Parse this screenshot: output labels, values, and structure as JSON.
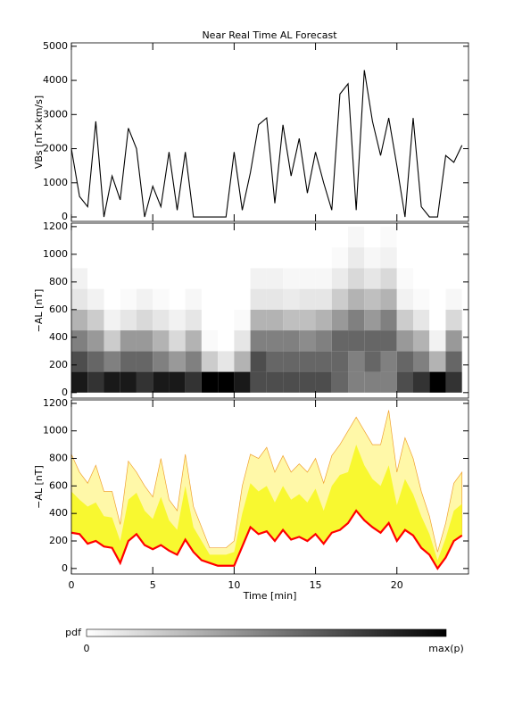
{
  "chart_data": [
    {
      "type": "line",
      "title": "Near Real Time AL Forecast",
      "ylabel": "VBs [nT×km/s]",
      "x": [
        0,
        0.5,
        1,
        1.5,
        2,
        2.5,
        3,
        3.5,
        4,
        4.5,
        5,
        5.5,
        6,
        6.5,
        7,
        7.5,
        8,
        8.5,
        9,
        9.5,
        10,
        10.5,
        11,
        11.5,
        12,
        12.5,
        13,
        13.5,
        14,
        14.5,
        15,
        15.5,
        16,
        16.5,
        17,
        17.5,
        18,
        18.5,
        19,
        19.5,
        20,
        20.5,
        21,
        21.5,
        22,
        22.5,
        23,
        23.5,
        24
      ],
      "series": [
        {
          "color": "#000000",
          "values": [
            2000,
            600,
            300,
            2800,
            0,
            1200,
            500,
            2600,
            2000,
            0,
            900,
            300,
            1900,
            200,
            1900,
            0,
            0,
            0,
            0,
            0,
            1900,
            200,
            1300,
            2700,
            2900,
            400,
            2700,
            1200,
            2300,
            700,
            1900,
            1000,
            200,
            3600,
            3900,
            200,
            4300,
            2800,
            1800,
            2900,
            1500,
            0,
            2900,
            300,
            0,
            0,
            1800,
            1600,
            2100
          ]
        }
      ],
      "xlim": [
        0,
        24.4
      ],
      "xticks": [
        0,
        5,
        10,
        15,
        20
      ],
      "ylim": [
        -130,
        5100
      ],
      "yticks": [
        0,
        1000,
        2000,
        3000,
        4000,
        5000
      ]
    },
    {
      "type": "heatmap",
      "ylabel": "−AL [nT]",
      "x": [
        0,
        1,
        2,
        3,
        4,
        5,
        6,
        7,
        8,
        9,
        10,
        11,
        12,
        13,
        14,
        15,
        16,
        17,
        18,
        19,
        20,
        21,
        22,
        23
      ],
      "y_bins": [
        0,
        150,
        300,
        450,
        600,
        750,
        900,
        1050,
        1200
      ],
      "z": [
        [
          0.9,
          0.7,
          0.5,
          0.3,
          0.1,
          0.05,
          0,
          0
        ],
        [
          0.8,
          0.6,
          0.4,
          0.2,
          0.05,
          0,
          0,
          0
        ],
        [
          0.9,
          0.5,
          0.2,
          0.05,
          0,
          0,
          0,
          0
        ],
        [
          0.9,
          0.6,
          0.4,
          0.1,
          0.02,
          0,
          0,
          0
        ],
        [
          0.8,
          0.6,
          0.4,
          0.15,
          0.05,
          0,
          0,
          0
        ],
        [
          0.9,
          0.5,
          0.3,
          0.1,
          0.02,
          0,
          0,
          0
        ],
        [
          0.9,
          0.4,
          0.15,
          0.05,
          0,
          0,
          0,
          0
        ],
        [
          0.8,
          0.5,
          0.3,
          0.1,
          0.03,
          0,
          0,
          0
        ],
        [
          1,
          0.2,
          0.02,
          0,
          0,
          0,
          0,
          0
        ],
        [
          1,
          0.1,
          0,
          0,
          0,
          0,
          0,
          0
        ],
        [
          0.9,
          0.3,
          0.1,
          0.02,
          0,
          0,
          0,
          0
        ],
        [
          0.7,
          0.7,
          0.5,
          0.3,
          0.1,
          0.05,
          0,
          0
        ],
        [
          0.7,
          0.6,
          0.5,
          0.3,
          0.1,
          0.05,
          0,
          0
        ],
        [
          0.7,
          0.6,
          0.5,
          0.25,
          0.08,
          0.03,
          0,
          0
        ],
        [
          0.7,
          0.6,
          0.45,
          0.25,
          0.1,
          0.03,
          0,
          0
        ],
        [
          0.7,
          0.6,
          0.5,
          0.3,
          0.1,
          0.03,
          0,
          0
        ],
        [
          0.6,
          0.6,
          0.6,
          0.4,
          0.2,
          0.08,
          0.02,
          0
        ],
        [
          0.5,
          0.5,
          0.6,
          0.5,
          0.3,
          0.15,
          0.08,
          0.03
        ],
        [
          0.5,
          0.6,
          0.6,
          0.4,
          0.25,
          0.1,
          0.03,
          0
        ],
        [
          0.5,
          0.5,
          0.6,
          0.5,
          0.3,
          0.15,
          0.05,
          0.02
        ],
        [
          0.7,
          0.6,
          0.4,
          0.2,
          0.05,
          0.02,
          0,
          0
        ],
        [
          0.8,
          0.5,
          0.3,
          0.1,
          0.02,
          0,
          0,
          0
        ],
        [
          1,
          0.3,
          0.05,
          0,
          0,
          0,
          0,
          0
        ],
        [
          0.8,
          0.6,
          0.4,
          0.15,
          0.03,
          0,
          0,
          0
        ]
      ],
      "xlim": [
        0,
        24.4
      ],
      "xticks": [
        0,
        5,
        10,
        15,
        20
      ],
      "ylim": [
        -40,
        1225
      ],
      "yticks": [
        0,
        200,
        400,
        600,
        800,
        1000,
        1200
      ]
    },
    {
      "type": "band",
      "ylabel": "−AL [nT]",
      "xlabel": "Time [min]",
      "x": [
        0,
        0.5,
        1,
        1.5,
        2,
        2.5,
        3,
        3.5,
        4,
        4.5,
        5,
        5.5,
        6,
        6.5,
        7,
        7.5,
        8,
        8.5,
        9,
        9.5,
        10,
        10.5,
        11,
        11.5,
        12,
        12.5,
        13,
        13.5,
        14,
        14.5,
        15,
        15.5,
        16,
        16.5,
        17,
        17.5,
        18,
        18.5,
        19,
        19.5,
        20,
        20.5,
        21,
        21.5,
        22,
        22.5,
        23,
        23.5,
        24
      ],
      "series": [
        {
          "color": "#fff8a8",
          "values": [
            830,
            700,
            620,
            750,
            560,
            560,
            320,
            780,
            700,
            600,
            520,
            800,
            500,
            420,
            830,
            450,
            300,
            150,
            150,
            150,
            200,
            600,
            830,
            800,
            880,
            700,
            820,
            700,
            760,
            700,
            800,
            620,
            820,
            900,
            1000,
            1100,
            1000,
            900,
            900,
            1150,
            700,
            950,
            800,
            560,
            380,
            120,
            330,
            620,
            700
          ]
        },
        {
          "color": "#f8f830",
          "values": [
            560,
            500,
            450,
            480,
            380,
            370,
            200,
            500,
            550,
            420,
            360,
            520,
            350,
            280,
            600,
            300,
            200,
            100,
            100,
            100,
            120,
            400,
            620,
            560,
            600,
            480,
            600,
            500,
            540,
            480,
            580,
            420,
            600,
            680,
            700,
            900,
            750,
            650,
            600,
            750,
            460,
            650,
            540,
            380,
            250,
            60,
            220,
            420,
            470
          ]
        },
        {
          "color": "#ff0000",
          "values": [
            260,
            250,
            180,
            200,
            160,
            150,
            40,
            200,
            250,
            170,
            140,
            170,
            130,
            100,
            210,
            120,
            60,
            40,
            20,
            20,
            20,
            160,
            300,
            250,
            270,
            200,
            280,
            210,
            230,
            200,
            250,
            180,
            260,
            280,
            330,
            420,
            350,
            300,
            260,
            330,
            200,
            280,
            240,
            150,
            100,
            0,
            80,
            200,
            240
          ]
        }
      ],
      "xlim": [
        0,
        24.4
      ],
      "xticks": [
        0,
        5,
        10,
        15,
        20
      ],
      "ylim": [
        -40,
        1225
      ],
      "yticks": [
        0,
        200,
        400,
        600,
        800,
        1000,
        1200
      ]
    }
  ],
  "colorbar": {
    "label": "pdf",
    "min_label": "0",
    "max_label": "max(p)"
  }
}
